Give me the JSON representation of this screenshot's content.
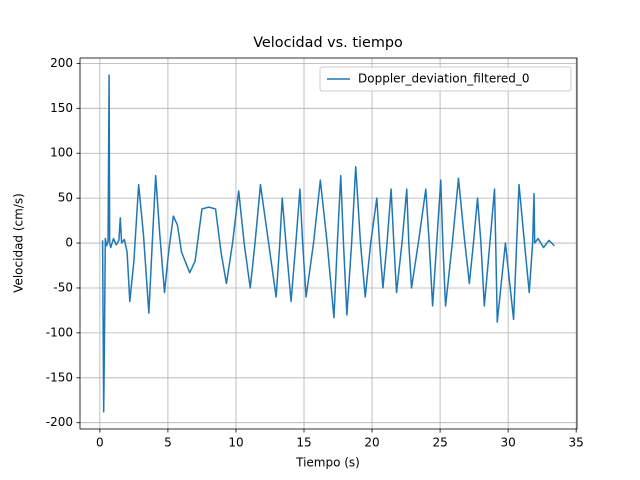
{
  "chart_data": {
    "type": "line",
    "title": "Velocidad vs. tiempo",
    "xlabel": "Tiempo (s)",
    "ylabel": "Velocidad (cm/s)",
    "x": [
      0.2,
      0.28,
      0.33,
      0.4,
      0.5,
      0.6,
      0.68,
      0.72,
      0.8,
      1.0,
      1.2,
      1.4,
      1.5,
      1.6,
      1.8,
      2.0,
      2.2,
      2.5,
      2.85,
      3.2,
      3.6,
      3.85,
      4.1,
      4.4,
      4.75,
      5.05,
      5.4,
      5.7,
      6.0,
      6.6,
      7.0,
      7.5,
      8.0,
      8.5,
      8.9,
      9.3,
      9.75,
      10.2,
      10.6,
      11.05,
      11.4,
      11.8,
      12.4,
      12.95,
      13.2,
      13.4,
      13.7,
      14.05,
      14.4,
      14.7,
      14.9,
      15.15,
      15.7,
      16.2,
      16.7,
      17.2,
      17.45,
      17.7,
      17.9,
      18.15,
      18.5,
      18.8,
      19.15,
      19.5,
      19.9,
      20.35,
      20.55,
      20.8,
      21.1,
      21.4,
      21.6,
      21.8,
      22.2,
      22.55,
      22.7,
      22.9,
      23.4,
      23.95,
      24.2,
      24.45,
      24.75,
      25.05,
      25.2,
      25.4,
      25.9,
      26.35,
      26.75,
      27.15,
      27.45,
      27.75,
      28.0,
      28.25,
      28.6,
      29.0,
      29.1,
      29.2,
      29.8,
      30.4,
      30.6,
      30.8,
      31.2,
      31.55,
      31.8,
      31.9,
      31.95,
      32.2,
      32.6,
      33.0,
      33.4
    ],
    "series": [
      {
        "name": "Doppler_deviation_filtered_0",
        "color": "#1f77b4",
        "values": [
          3,
          -188,
          -120,
          5,
          -3,
          2,
          187,
          0,
          -5,
          5,
          -2,
          3,
          28,
          0,
          4,
          -10,
          -65,
          -20,
          65,
          10,
          -78,
          0,
          75,
          10,
          -55,
          -10,
          30,
          20,
          -10,
          -33,
          -20,
          38,
          40,
          38,
          -10,
          -45,
          0,
          58,
          0,
          -50,
          0,
          65,
          0,
          -60,
          -5,
          50,
          -5,
          -65,
          0,
          60,
          0,
          -60,
          0,
          70,
          0,
          -83,
          0,
          75,
          0,
          -80,
          0,
          85,
          0,
          -60,
          0,
          50,
          0,
          -50,
          0,
          60,
          0,
          -55,
          0,
          60,
          0,
          -50,
          0,
          60,
          0,
          -70,
          0,
          70,
          0,
          -70,
          0,
          72,
          10,
          -45,
          0,
          50,
          0,
          -70,
          -10,
          60,
          -10,
          -88,
          0,
          -85,
          -10,
          65,
          0,
          -55,
          0,
          55,
          0,
          5,
          -5,
          3,
          -3
        ]
      }
    ],
    "xlim": [
      -1.46,
      35.06
    ],
    "ylim": [
      -207,
      206
    ],
    "xticks": [
      0,
      5,
      10,
      15,
      20,
      25,
      30,
      35
    ],
    "yticks": [
      -200,
      -150,
      -100,
      -50,
      0,
      50,
      100,
      150,
      200
    ],
    "grid": true,
    "legend": "upper right"
  }
}
